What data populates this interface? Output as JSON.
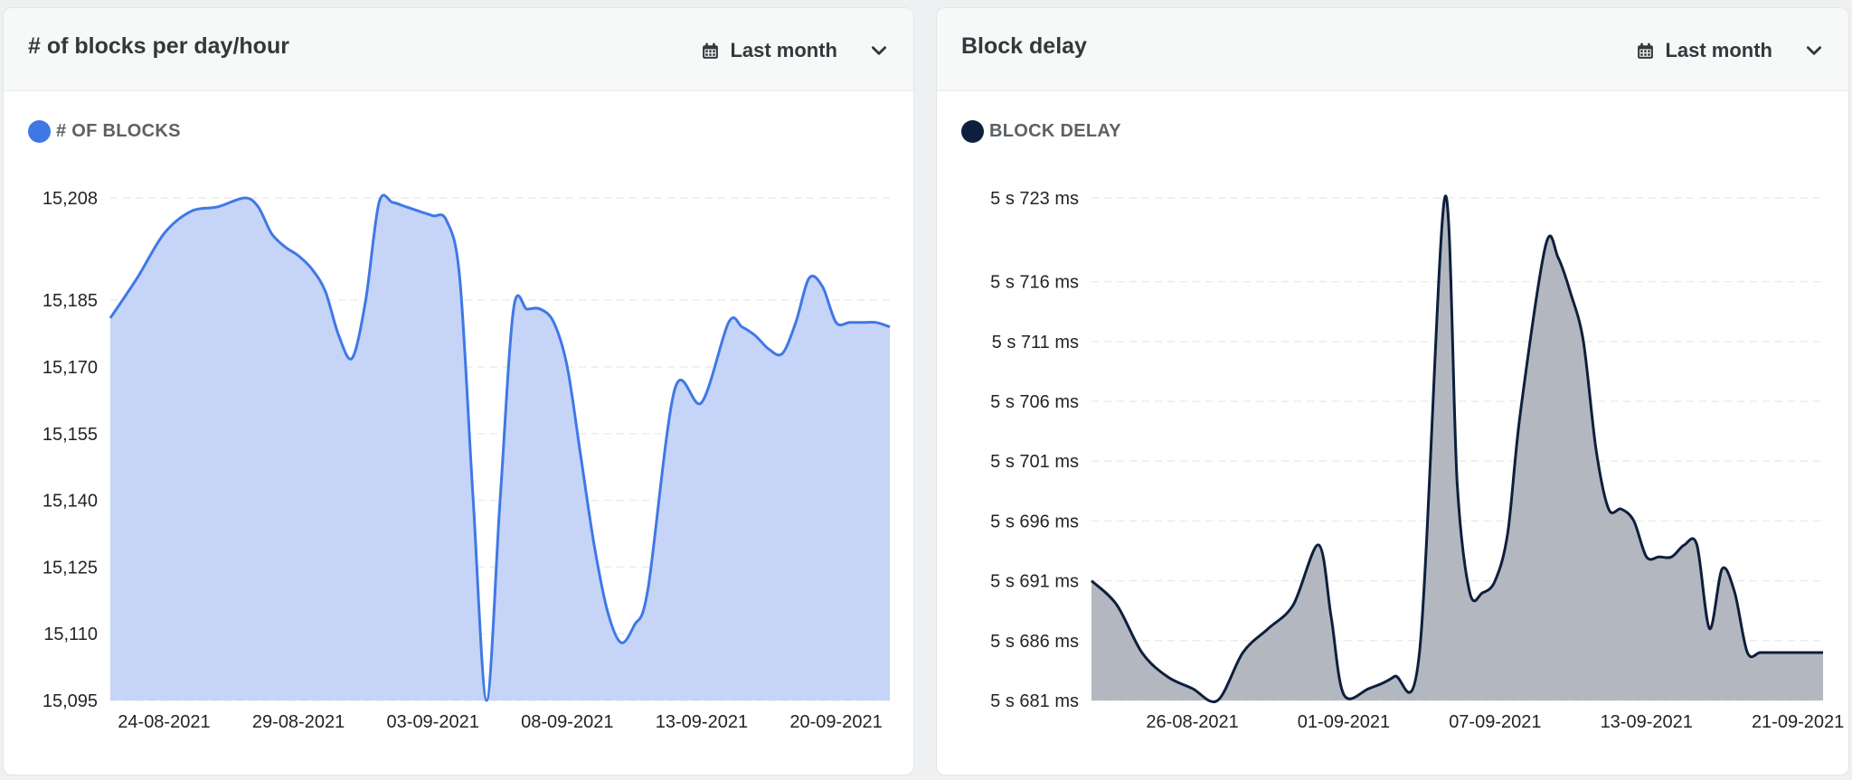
{
  "cards": [
    {
      "title": "# of blocks per day/hour",
      "range_label": "Last month",
      "range_icon": "calendar-icon",
      "dropdown_icon": "chevron-down-icon"
    },
    {
      "title": "Block delay",
      "range_label": "Last month",
      "range_icon": "calendar-icon",
      "dropdown_icon": "chevron-down-icon"
    }
  ],
  "chart_data": [
    {
      "type": "area",
      "title": "# of blocks per day/hour",
      "legend": "# OF BLOCKS",
      "color": "#3f78e6",
      "fill": "#c6d4f8",
      "grid": true,
      "ylim": [
        15095,
        15208
      ],
      "yticks": [
        15095,
        15110,
        15125,
        15140,
        15155,
        15170,
        15185,
        15208
      ],
      "ytick_labels": [
        "15,095",
        "15,110",
        "15,125",
        "15,140",
        "15,155",
        "15,170",
        "15,185",
        "15,208"
      ],
      "xlim": [
        0,
        29
      ],
      "xtick_positions": [
        2,
        7,
        12,
        17,
        22,
        27
      ],
      "xtick_labels": [
        "24-08-2021",
        "29-08-2021",
        "03-09-2021",
        "08-09-2021",
        "13-09-2021",
        "20-09-2021"
      ],
      "x": [
        0,
        1,
        2,
        3,
        4,
        5,
        5.5,
        6,
        6.5,
        7,
        7.5,
        8,
        8.5,
        9,
        9.5,
        10,
        10.5,
        11,
        11.5,
        12,
        12.5,
        13,
        13.5,
        14,
        14.5,
        15,
        15.5,
        16,
        16.5,
        17,
        17.5,
        18,
        18.5,
        19,
        19.5,
        20,
        21,
        22,
        23,
        23.5,
        24,
        24.5,
        25,
        25.5,
        26,
        26.5,
        27,
        27.5,
        28,
        28.5,
        29
      ],
      "y": [
        15181,
        15190,
        15200,
        15205,
        15206,
        15208,
        15206,
        15200,
        15197,
        15195,
        15192,
        15187,
        15177,
        15172,
        15185,
        15207,
        15207,
        15206,
        15205,
        15204,
        15203,
        15190,
        15140,
        15095,
        15140,
        15183,
        15183,
        15183,
        15180,
        15170,
        15150,
        15130,
        15115,
        15108,
        15112,
        15120,
        15165,
        15162,
        15180,
        15179,
        15177,
        15174,
        15173,
        15180,
        15190,
        15188,
        15180,
        15180,
        15180,
        15180,
        15179
      ]
    },
    {
      "type": "area",
      "title": "Block delay",
      "legend": "BLOCK DELAY",
      "color": "#0d1f3c",
      "fill": "#b3b8c0",
      "grid": true,
      "ylim": [
        5681,
        5723
      ],
      "yticks": [
        5681,
        5686,
        5691,
        5696,
        5701,
        5706,
        5711,
        5716,
        5723
      ],
      "ytick_labels": [
        "5 s 681 ms",
        "5 s 686 ms",
        "5 s 691 ms",
        "5 s 696 ms",
        "5 s 701 ms",
        "5 s 706 ms",
        "5 s 711 ms",
        "5 s 716 ms",
        "5 s 723 ms"
      ],
      "xlim": [
        0,
        29
      ],
      "xtick_positions": [
        4,
        10,
        16,
        22,
        28
      ],
      "xtick_labels": [
        "26-08-2021",
        "01-09-2021",
        "07-09-2021",
        "13-09-2021",
        "21-09-2021"
      ],
      "x": [
        0,
        1,
        2,
        3,
        4,
        5,
        6,
        7,
        8,
        9,
        9.5,
        10,
        11,
        12,
        13,
        14,
        14.5,
        15,
        15.5,
        16,
        16.5,
        17,
        18,
        18.5,
        19,
        19.5,
        20,
        20.5,
        21,
        21.5,
        22,
        22.5,
        23,
        23.5,
        24,
        24.5,
        25,
        25.5,
        26,
        26.5,
        27,
        27.5,
        28,
        28.5,
        29
      ],
      "y": [
        5691,
        5689,
        5685,
        5683,
        5682,
        5681,
        5685,
        5687,
        5689,
        5694,
        5688,
        5681.5,
        5682,
        5683,
        5685,
        5723,
        5699,
        5690,
        5690,
        5691,
        5695,
        5705,
        5719,
        5718,
        5715,
        5711,
        5702,
        5697,
        5697,
        5696,
        5693,
        5693,
        5693,
        5694,
        5694,
        5687,
        5692,
        5690,
        5685,
        5685,
        5685,
        5685,
        5685,
        5685,
        5685
      ]
    }
  ]
}
